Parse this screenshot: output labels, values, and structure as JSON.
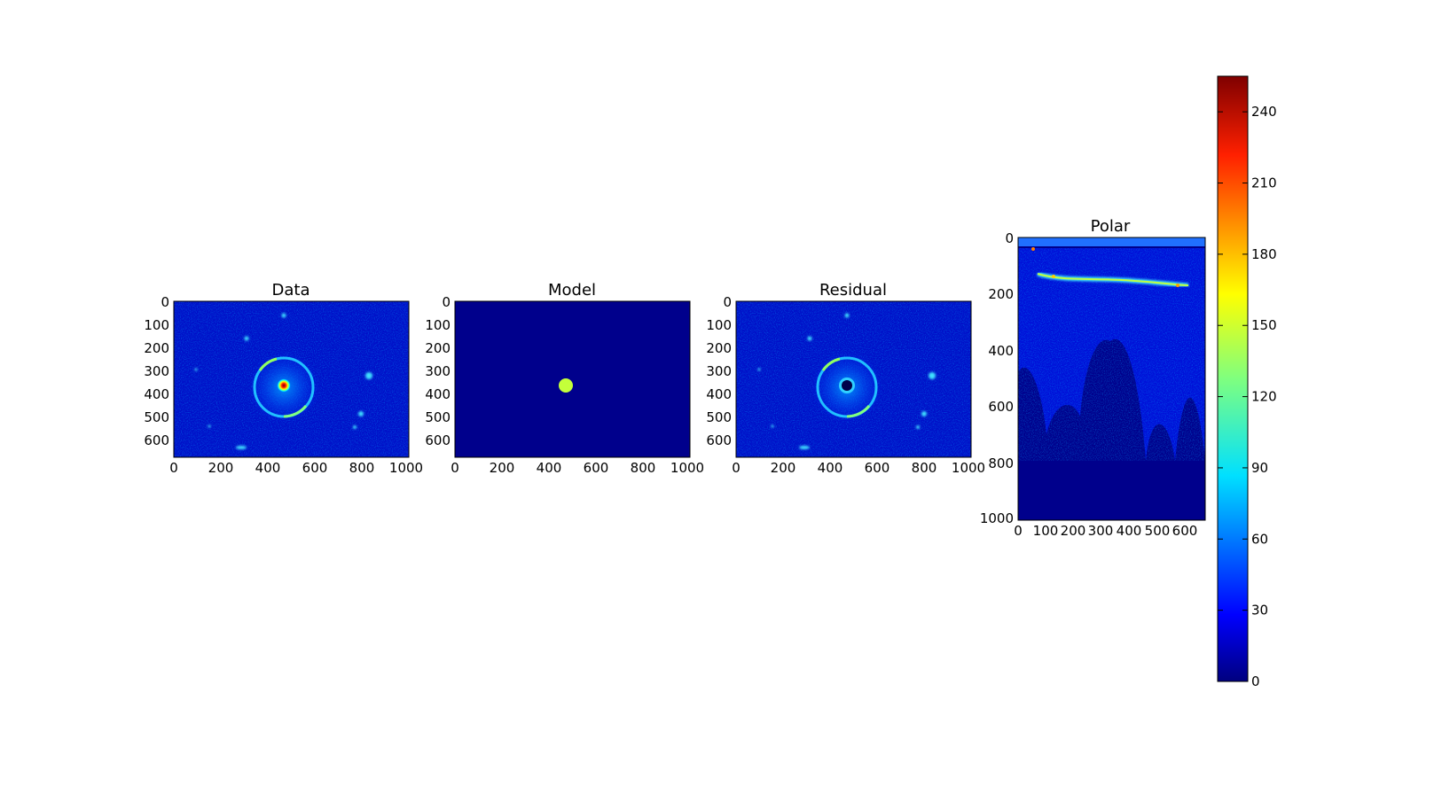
{
  "colormap": {
    "name": "jet",
    "stops": [
      "#00007f",
      "#0000ff",
      "#007fff",
      "#00ffff",
      "#7fff7f",
      "#ffff00",
      "#ff7f00",
      "#ff0000",
      "#7f0000"
    ]
  },
  "chart_data": [
    {
      "type": "heatmap",
      "title": "Data",
      "xlim": [
        0,
        1000
      ],
      "ylim": [
        0,
        670
      ],
      "y_inverted": true,
      "xticks": [
        0,
        200,
        400,
        600,
        800,
        1000
      ],
      "yticks": [
        0,
        100,
        200,
        300,
        400,
        500,
        600
      ],
      "features": {
        "background_level": 30,
        "central_source": {
          "x": 470,
          "y": 365,
          "peak": 240
        },
        "ring": {
          "center": [
            470,
            365
          ],
          "radius": 125,
          "level": 110
        },
        "compact_sources": [
          [
            470,
            60
          ],
          [
            310,
            160
          ],
          [
            830,
            320
          ],
          [
            810,
            490
          ],
          [
            780,
            545
          ],
          [
            300,
            635
          ],
          [
            150,
            540
          ],
          [
            90,
            180
          ]
        ]
      }
    },
    {
      "type": "heatmap",
      "title": "Model",
      "xlim": [
        0,
        1000
      ],
      "ylim": [
        0,
        670
      ],
      "y_inverted": true,
      "xticks": [
        0,
        200,
        400,
        600,
        800,
        1000
      ],
      "yticks": [
        0,
        100,
        200,
        300,
        400,
        500,
        600
      ],
      "features": {
        "background_level": 0,
        "central_source": {
          "x": 475,
          "y": 360,
          "radius": 30,
          "level": 160
        }
      }
    },
    {
      "type": "heatmap",
      "title": "Residual",
      "xlim": [
        0,
        1000
      ],
      "ylim": [
        0,
        670
      ],
      "y_inverted": true,
      "xticks": [
        0,
        200,
        400,
        600,
        800,
        1000
      ],
      "yticks": [
        0,
        100,
        200,
        300,
        400,
        500,
        600
      ],
      "features": {
        "background_level": 30,
        "central_hole": {
          "x": 475,
          "y": 365,
          "radius": 30,
          "level": 0
        },
        "ring": {
          "center": [
            470,
            365
          ],
          "radius": 125,
          "level": 110
        },
        "compact_sources": [
          [
            470,
            60
          ],
          [
            310,
            160
          ],
          [
            830,
            320
          ],
          [
            810,
            490
          ],
          [
            780,
            545
          ],
          [
            300,
            635
          ],
          [
            150,
            540
          ],
          [
            90,
            180
          ]
        ]
      }
    },
    {
      "type": "heatmap",
      "title": "Polar",
      "xlim": [
        0,
        670
      ],
      "ylim": [
        0,
        1000
      ],
      "y_inverted": true,
      "xticks": [
        0,
        100,
        200,
        300,
        400,
        500,
        600
      ],
      "yticks": [
        0,
        200,
        400,
        600,
        800,
        1000
      ],
      "features": {
        "band_level": 40,
        "arc_y": 160,
        "arc_level": 150,
        "empty_level": 0
      }
    }
  ],
  "colorbar": {
    "min": 0,
    "max": 255,
    "ticks": [
      0,
      30,
      60,
      90,
      120,
      150,
      180,
      210,
      240
    ]
  }
}
